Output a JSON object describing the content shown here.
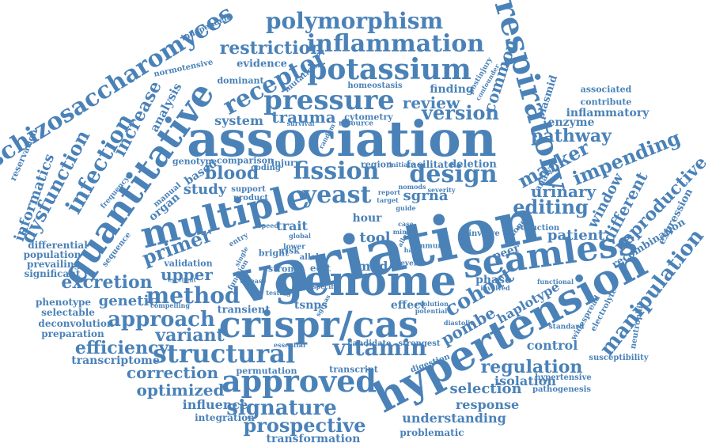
{
  "word_color": "#4a82b8",
  "background": "#ffffff",
  "words": [
    "variation",
    "association",
    "hypertension",
    "genome",
    "crispr/cas",
    "seamless",
    "quantitative",
    "multiple",
    "respiratory",
    "approved",
    "structural",
    "schizosaccharomyces",
    "potassium",
    "inflammation",
    "polymorphism",
    "pressure",
    "fission",
    "design",
    "yeast",
    "receptor",
    "infection",
    "manipulation",
    "cohort",
    "method",
    "vitamin",
    "editing",
    "approach",
    "signature",
    "prospective",
    "dysfunction",
    "marker",
    "primer",
    "regulation",
    "impending",
    "excretion",
    "reproductive",
    "increase",
    "version",
    "restriction",
    "efficiency",
    "pathway",
    "urinary",
    "different",
    "window",
    "optimized",
    "correction",
    "selection",
    "patient",
    "trauma",
    "review",
    "common",
    "informatics",
    "blood",
    "variant",
    "upper",
    "genetic",
    "pombe",
    "haplotype",
    "response",
    "control",
    "isolation",
    "system",
    "study",
    "sgrna",
    "plasmid",
    "influence",
    "understanding",
    "transformation",
    "transcriptome",
    "integration",
    "peer",
    "trait",
    "tool",
    "mod",
    "evidence",
    "enzyme",
    "finding",
    "inflammatory",
    "expression",
    "recombination",
    "analysis",
    "based",
    "organ",
    "phase",
    "edit",
    "effect",
    "hour",
    "tsnps",
    "phenotype",
    "differential",
    "population",
    "prevailing",
    "significant",
    "selectable",
    "deconvolution",
    "preparation",
    "transient",
    "validation",
    "sequence",
    "associated",
    "contribute",
    "susceptibility",
    "hypertensive",
    "pathogenesis",
    "problematic",
    "permutation",
    "transcript",
    "candidate",
    "strongest",
    "digestion",
    "mutation",
    "dominant",
    "normotensive",
    "independent",
    "homeostasis",
    "cytometry",
    "resource",
    "deletion",
    "facilitate",
    "injury",
    "region",
    "coding",
    "comparison",
    "genotype",
    "support",
    "product",
    "manual",
    "frequency",
    "reservation",
    "analyse",
    "clone",
    "reduction",
    "involve",
    "standard",
    "electrolyte",
    "neutrophil",
    "widespread",
    "postinjury",
    "confounder",
    "functional",
    "involved",
    "evolution",
    "potential",
    "diastolic",
    "several",
    "bright",
    "entry",
    "lower",
    "allele",
    "risk",
    "strong",
    "function",
    "disease",
    "essential",
    "compelling",
    "survival",
    "random",
    "specific",
    "testing",
    "sgrnas",
    "speed",
    "global",
    "single",
    "excellent",
    "minor",
    "case",
    "guide",
    "report",
    "target",
    "severity",
    "immune",
    "allow",
    "have",
    "nomods",
    "initiate"
  ]
}
